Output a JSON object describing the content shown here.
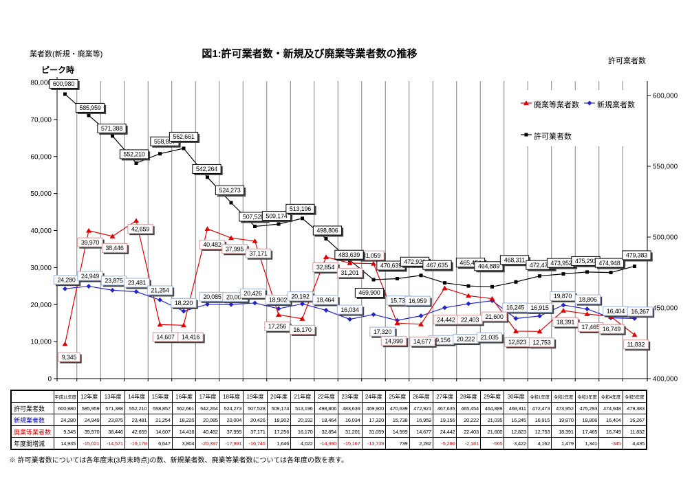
{
  "header": {
    "left_axis_title": "業者数(新規・廃業等)",
    "peak_label": "ピーク時",
    "title": "図1:許可業者数・新規及び廃業等業者数の推移",
    "right_axis_title": "許可業者数"
  },
  "legend": {
    "closed_label": "廃業等業者数",
    "new_label": "新規業者数",
    "licensed_label": "許可業者数"
  },
  "chart_data": {
    "type": "line",
    "categories": [
      "平成11年度",
      "12年度",
      "13年度",
      "14年度",
      "15年度",
      "16年度",
      "17年度",
      "18年度",
      "19年度",
      "20年度",
      "21年度",
      "22年度",
      "23年度",
      "24年度",
      "25年度",
      "26年度",
      "27年度",
      "28年度",
      "29年度",
      "30年度",
      "令和1年度",
      "令和2年度",
      "令和3年度",
      "令和4年度",
      "令和5年度"
    ],
    "series": [
      {
        "name": "許可業者数",
        "axis": "right",
        "color": "#000000",
        "label_border": "#000000",
        "marker": "square",
        "values": [
          600980,
          585959,
          571388,
          552210,
          558857,
          562661,
          542264,
          524273,
          507528,
          509174,
          513196,
          498806,
          483639,
          469900,
          470639,
          472921,
          467635,
          465454,
          464889,
          468311,
          472473,
          473952,
          475293,
          474948,
          479383
        ]
      },
      {
        "name": "新規業者数",
        "axis": "left",
        "color": "#2222cc",
        "label_border": "#9db3d9",
        "marker": "diamond",
        "values": [
          24280,
          24949,
          23875,
          23481,
          21254,
          18220,
          20085,
          20004,
          20426,
          18902,
          20192,
          18464,
          16034,
          17320,
          15738,
          16959,
          19156,
          20222,
          21035,
          16245,
          16915,
          19870,
          18806,
          16404,
          16267
        ]
      },
      {
        "name": "廃業等業者数",
        "axis": "left",
        "color": "#e00000",
        "label_border": "#d99a9a",
        "marker": "triangle",
        "values": [
          9345,
          39970,
          38446,
          42659,
          14607,
          14416,
          40482,
          37995,
          37171,
          17256,
          16170,
          32854,
          31201,
          31059,
          14999,
          14677,
          24442,
          22403,
          21600,
          12823,
          12753,
          18391,
          17465,
          16749,
          11832
        ]
      }
    ],
    "left_axis": {
      "min": 0,
      "max": 80000,
      "step": 10000,
      "labels": [
        "0",
        "10,000",
        "20,000",
        "30,000",
        "40,000",
        "50,000",
        "60,000",
        "70,000",
        "80,000"
      ]
    },
    "right_axis": {
      "min": 400000,
      "max": 600000,
      "step": 50000,
      "labels": [
        "400,000",
        "450,000",
        "500,000",
        "550,000",
        "600,000"
      ]
    },
    "grid": "vertical-only",
    "legend_position": "top-right-inside",
    "data_labels": true
  },
  "table": {
    "corner": "",
    "columns": [
      "平成11年度",
      "12年度",
      "13年度",
      "14年度",
      "15年度",
      "16年度",
      "17年度",
      "18年度",
      "19年度",
      "20年度",
      "21年度",
      "22年度",
      "23年度",
      "24年度",
      "25年度",
      "26年度",
      "27年度",
      "28年度",
      "29年度",
      "30年度",
      "令和1年度",
      "令和2年度",
      "令和3年度",
      "令和4年度",
      "令和5年度"
    ],
    "row_headers": [
      "許可業者数",
      "新規業者数",
      "廃業等業者数",
      "年度間増減"
    ],
    "row_colors": [
      "#000000",
      "#0000cc",
      "#e00000",
      "#000000"
    ],
    "negative_color": "#e00000",
    "rows": [
      [
        "600,980",
        "585,959",
        "571,388",
        "552,210",
        "558,857",
        "562,661",
        "542,264",
        "524,273",
        "507,528",
        "509,174",
        "513,196",
        "498,806",
        "483,639",
        "469,900",
        "470,639",
        "472,921",
        "467,635",
        "465,454",
        "464,889",
        "468,311",
        "472,473",
        "473,952",
        "475,293",
        "474,948",
        "479,383"
      ],
      [
        "24,280",
        "24,949",
        "23,875",
        "23,481",
        "21,254",
        "18,220",
        "20,085",
        "20,004",
        "20,426",
        "18,902",
        "20,192",
        "18,464",
        "16,034",
        "17,320",
        "15,738",
        "16,959",
        "19,156",
        "20,222",
        "21,035",
        "16,245",
        "16,915",
        "19,870",
        "18,806",
        "16,404",
        "16,267"
      ],
      [
        "9,345",
        "39,970",
        "38,446",
        "42,659",
        "14,607",
        "14,416",
        "40,482",
        "37,995",
        "37,171",
        "17,256",
        "16,170",
        "32,854",
        "31,201",
        "31,059",
        "14,999",
        "14,677",
        "24,442",
        "22,403",
        "21,600",
        "12,823",
        "12,753",
        "18,391",
        "17,465",
        "16,749",
        "11,832"
      ],
      [
        "14,935",
        "-15,021",
        "-14,571",
        "-19,178",
        "6,647",
        "3,804",
        "-20,397",
        "-17,991",
        "-16,745",
        "1,646",
        "4,022",
        "-14,390",
        "-15,167",
        "-13,739",
        "739",
        "2,282",
        "-5,286",
        "-2,181",
        "-565",
        "3,422",
        "4,162",
        "1,479",
        "1,341",
        "-345",
        "4,435"
      ]
    ]
  },
  "footnote": "※ 許可業者数については各年度末(3月末時点)の数、新規業者数、廃業等業者数については各年度の数を表す。"
}
